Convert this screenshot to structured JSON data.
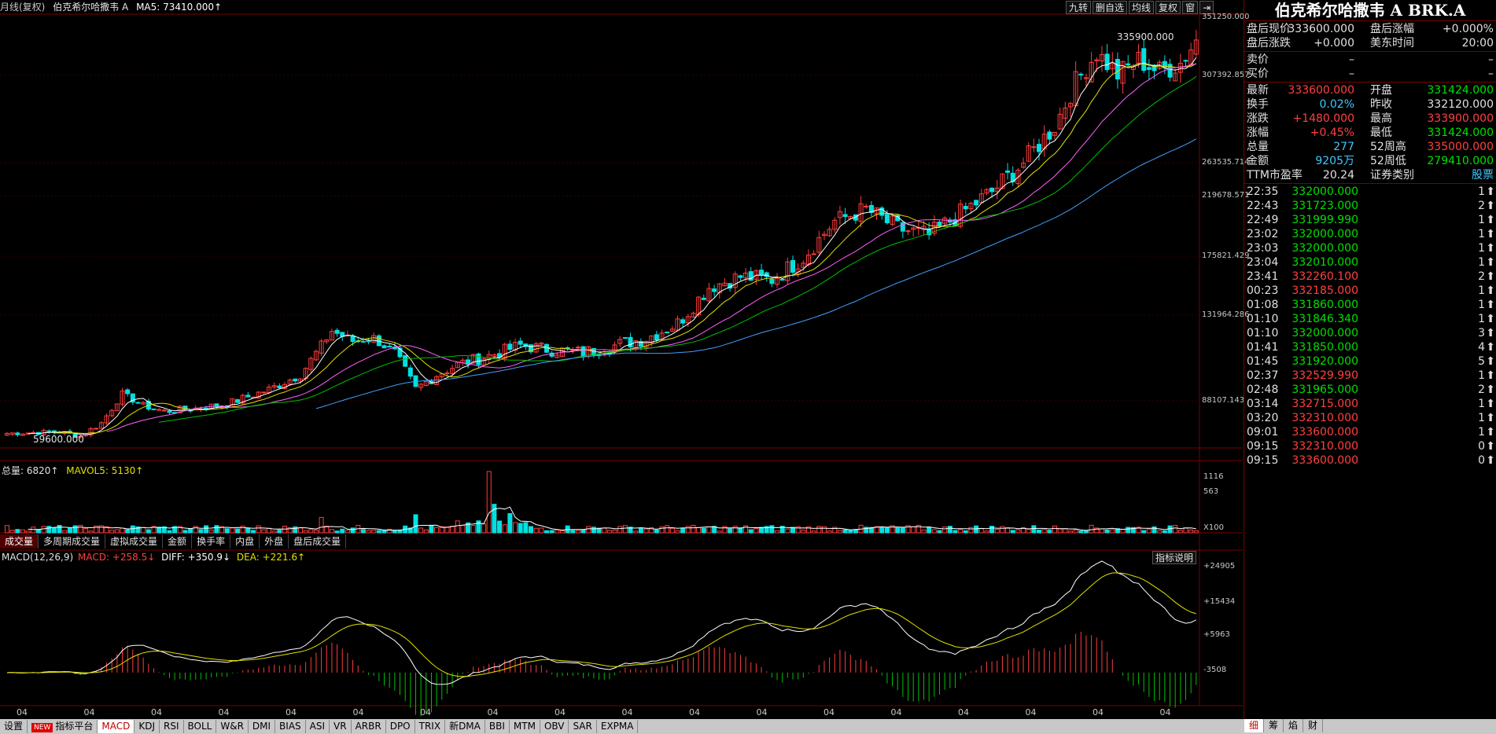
{
  "chart_header": {
    "period": "月线(复权)",
    "name": "伯克希尔哈撒韦 A",
    "ma_label": "MA5: 73410.000↑",
    "buttons": [
      "九转",
      "删自选",
      "均线",
      "复权",
      "窗"
    ]
  },
  "price_axis": [
    "351250.000",
    "307392.857",
    "263535.714",
    "219678.571",
    "175821.429",
    "131964.286",
    "88107.143"
  ],
  "price_annotations": {
    "high": "335900.000",
    "low": "59600.000"
  },
  "volume_panel": {
    "total_label": "总量: 6820↑",
    "mavol_label": "MAVOL5: 5130↑",
    "axis": [
      "1116",
      "563",
      "X100"
    ]
  },
  "volume_tabs": [
    "成交量",
    "多周期成交量",
    "虚拟成交量",
    "金额",
    "换手率",
    "内盘",
    "外盘",
    "盘后成交量"
  ],
  "macd_panel": {
    "title": "MACD(12,26,9)",
    "macd_label": "MACD: +258.5↓",
    "diff_label": "DIFF: +350.9↓",
    "dea_label": "DEA: +221.6↑",
    "axis": [
      "+24905",
      "+15434",
      "+5963",
      "-3508"
    ],
    "help_button": "指标说明"
  },
  "x_ticks": [
    "04",
    "04",
    "04",
    "04",
    "04",
    "04",
    "04",
    "04",
    "04",
    "04",
    "04",
    "04",
    "04",
    "04",
    "04",
    "04",
    "04",
    "04"
  ],
  "bottom_toolbar": {
    "settings": "设置",
    "new_badge": "NEW",
    "platform": "指标平台",
    "indicators": [
      "MACD",
      "KDJ",
      "RSI",
      "BOLL",
      "W&R",
      "DMI",
      "BIAS",
      "ASI",
      "VR",
      "ARBR",
      "DPO",
      "TRIX",
      "新DMA",
      "BBI",
      "MTM",
      "OBV",
      "SAR",
      "EXPMA"
    ]
  },
  "quote_panel": {
    "title": "伯克希尔哈撒韦 A BRK.A",
    "after_hours": [
      {
        "l1": "盘后现价",
        "v1": "333600.000",
        "l2": "盘后涨幅",
        "v2": "+0.000%"
      },
      {
        "l1": "盘后涨跌",
        "v1": "+0.000",
        "l2": "美东时间",
        "v2": "20:00"
      }
    ],
    "bid_ask": [
      {
        "label": "卖价",
        "v1": "–",
        "v2": "–"
      },
      {
        "label": "买价",
        "v1": "–",
        "v2": "–"
      }
    ],
    "stats": [
      {
        "l1": "最新",
        "v1": "333600.000",
        "c1": "r",
        "l2": "开盘",
        "v2": "331424.000",
        "c2": "g"
      },
      {
        "l1": "换手",
        "v1": "0.02%",
        "c1": "c",
        "l2": "昨收",
        "v2": "332120.000",
        "c2": "w"
      },
      {
        "l1": "涨跌",
        "v1": "+1480.000",
        "c1": "r",
        "l2": "最高",
        "v2": "333900.000",
        "c2": "r"
      },
      {
        "l1": "涨幅",
        "v1": "+0.45%",
        "c1": "r",
        "l2": "最低",
        "v2": "331424.000",
        "c2": "g"
      },
      {
        "l1": "总量",
        "v1": "277",
        "c1": "c",
        "l2": "52周高",
        "v2": "335000.000",
        "c2": "r"
      },
      {
        "l1": "金额",
        "v1": "9205万",
        "c1": "c",
        "l2": "52周低",
        "v2": "279410.000",
        "c2": "g"
      },
      {
        "l1": "TTM市盈率",
        "v1": "20.24",
        "c1": "w",
        "l2": "证券类别",
        "v2": "股票",
        "c2": "c"
      }
    ],
    "ticks": [
      {
        "t": "22:35",
        "p": "332000.000",
        "c": "g",
        "v": "1"
      },
      {
        "t": "22:43",
        "p": "331723.000",
        "c": "g",
        "v": "2"
      },
      {
        "t": "22:49",
        "p": "331999.990",
        "c": "g",
        "v": "1"
      },
      {
        "t": "23:02",
        "p": "332000.000",
        "c": "g",
        "v": "1"
      },
      {
        "t": "23:03",
        "p": "332000.000",
        "c": "g",
        "v": "1"
      },
      {
        "t": "23:04",
        "p": "332010.000",
        "c": "g",
        "v": "1"
      },
      {
        "t": "23:41",
        "p": "332260.100",
        "c": "r",
        "v": "2"
      },
      {
        "t": "00:23",
        "p": "332185.000",
        "c": "r",
        "v": "1"
      },
      {
        "t": "01:08",
        "p": "331860.000",
        "c": "g",
        "v": "1"
      },
      {
        "t": "01:10",
        "p": "331846.340",
        "c": "g",
        "v": "1"
      },
      {
        "t": "01:10",
        "p": "332000.000",
        "c": "g",
        "v": "3"
      },
      {
        "t": "01:41",
        "p": "331850.000",
        "c": "g",
        "v": "4"
      },
      {
        "t": "01:45",
        "p": "331920.000",
        "c": "g",
        "v": "5"
      },
      {
        "t": "02:37",
        "p": "332529.990",
        "c": "r",
        "v": "1"
      },
      {
        "t": "02:48",
        "p": "331965.000",
        "c": "g",
        "v": "2"
      },
      {
        "t": "03:14",
        "p": "332715.000",
        "c": "r",
        "v": "1"
      },
      {
        "t": "03:20",
        "p": "332310.000",
        "c": "r",
        "v": "1"
      },
      {
        "t": "09:01",
        "p": "333600.000",
        "c": "r",
        "v": "1"
      },
      {
        "t": "09:15",
        "p": "332310.000",
        "c": "r",
        "v": "0"
      },
      {
        "t": "09:15",
        "p": "333600.000",
        "c": "r",
        "v": "0"
      }
    ],
    "bottom_tabs": [
      "细",
      "筹",
      "焰",
      "财"
    ]
  },
  "chart_data": {
    "type": "candlestick",
    "yrange": [
      55000,
      351250
    ],
    "x_tick_label": "04",
    "ma_colors": [
      "#ffffff",
      "#e0e000",
      "#ff60ff",
      "#00c000",
      "#40a0ff"
    ],
    "up_color": "#ff3c3c",
    "down_color": "#00e0e0",
    "anchors_close": [
      [
        0,
        65000
      ],
      [
        10,
        66000
      ],
      [
        14,
        63000
      ],
      [
        18,
        72000
      ],
      [
        22,
        92000
      ],
      [
        26,
        84000
      ],
      [
        30,
        80000
      ],
      [
        36,
        82000
      ],
      [
        42,
        85000
      ],
      [
        50,
        95000
      ],
      [
        56,
        105000
      ],
      [
        62,
        135000
      ],
      [
        66,
        128000
      ],
      [
        70,
        130000
      ],
      [
        74,
        120000
      ],
      [
        78,
        95000
      ],
      [
        82,
        105000
      ],
      [
        86,
        112000
      ],
      [
        92,
        118000
      ],
      [
        98,
        125000
      ],
      [
        104,
        122000
      ],
      [
        110,
        120000
      ],
      [
        116,
        125000
      ],
      [
        122,
        130000
      ],
      [
        128,
        140000
      ],
      [
        134,
        165000
      ],
      [
        140,
        172000
      ],
      [
        146,
        170000
      ],
      [
        152,
        185000
      ],
      [
        158,
        210000
      ],
      [
        164,
        218000
      ],
      [
        170,
        205000
      ],
      [
        176,
        200000
      ],
      [
        182,
        215000
      ],
      [
        188,
        230000
      ],
      [
        194,
        250000
      ],
      [
        200,
        275000
      ],
      [
        204,
        305000
      ],
      [
        208,
        325000
      ],
      [
        212,
        310000
      ],
      [
        216,
        320000
      ],
      [
        220,
        312000
      ],
      [
        224,
        318000
      ],
      [
        227,
        333600
      ]
    ],
    "volume_spikes": [
      [
        60,
        280
      ],
      [
        78,
        330
      ],
      [
        92,
        1116
      ],
      [
        93,
        520
      ],
      [
        96,
        350
      ]
    ],
    "macd_range": [
      -6000,
      26000
    ]
  }
}
